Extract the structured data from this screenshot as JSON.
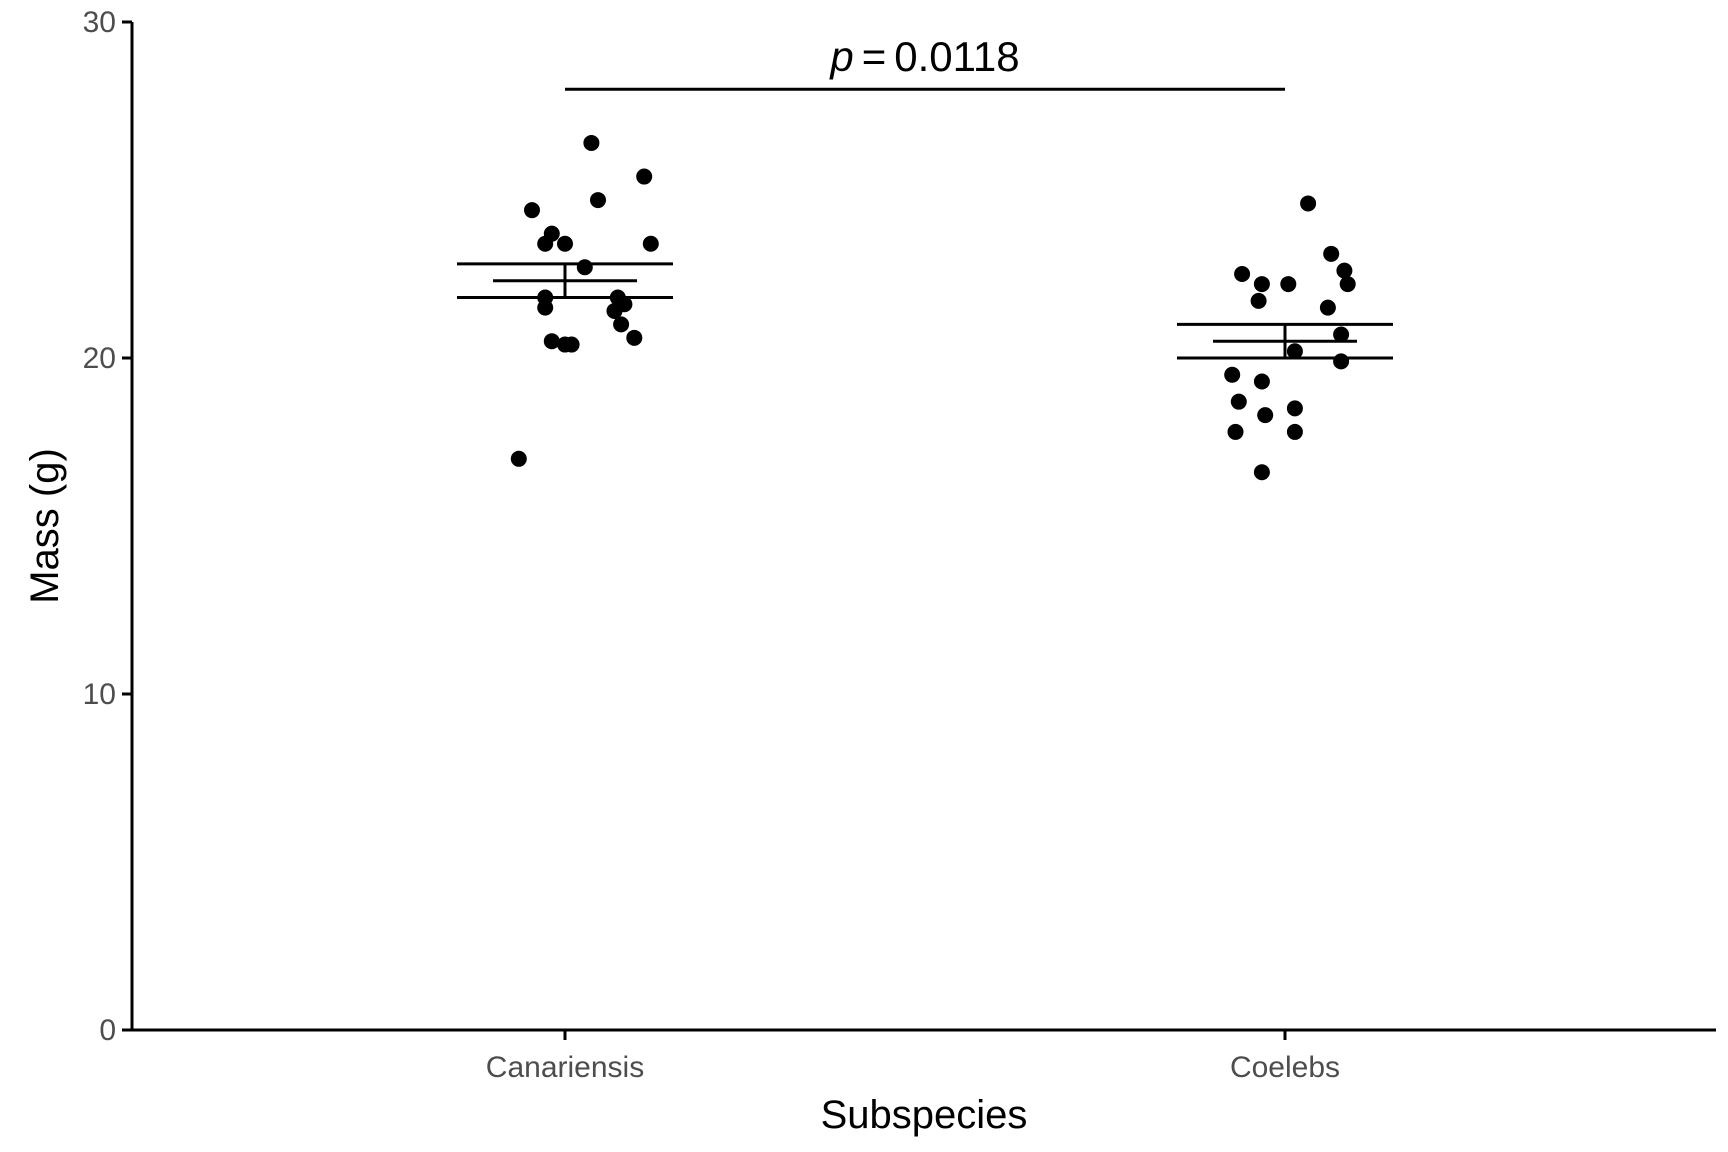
{
  "chart_data": {
    "type": "scatter",
    "title": "",
    "xlabel": "Subspecies",
    "ylabel": "Mass (g)",
    "ylim": [
      0,
      30
    ],
    "yticks": [
      "0",
      "10",
      "20",
      "30"
    ],
    "categories": [
      "Canariensis",
      "Coelebs"
    ],
    "grid": false,
    "colors": {
      "points": "#000000",
      "axis": "#000000",
      "tick_text": "#4d4d4d"
    },
    "groups": [
      {
        "category": "Canariensis",
        "mean": 22.3,
        "se_low": 21.8,
        "se_high": 22.8,
        "points": [
          {
            "jitter": 0.08,
            "y": 26.4
          },
          {
            "jitter": 0.24,
            "y": 25.4
          },
          {
            "jitter": 0.1,
            "y": 24.7
          },
          {
            "jitter": -0.1,
            "y": 24.4
          },
          {
            "jitter": -0.04,
            "y": 23.7
          },
          {
            "jitter": -0.06,
            "y": 23.4
          },
          {
            "jitter": 0.0,
            "y": 23.4
          },
          {
            "jitter": 0.26,
            "y": 23.4
          },
          {
            "jitter": 0.06,
            "y": 22.7
          },
          {
            "jitter": -0.06,
            "y": 21.8
          },
          {
            "jitter": 0.16,
            "y": 21.8
          },
          {
            "jitter": -0.06,
            "y": 21.5
          },
          {
            "jitter": 0.18,
            "y": 21.6
          },
          {
            "jitter": 0.15,
            "y": 21.4
          },
          {
            "jitter": 0.17,
            "y": 21.0
          },
          {
            "jitter": -0.04,
            "y": 20.5
          },
          {
            "jitter": 0.02,
            "y": 20.4
          },
          {
            "jitter": 0.0,
            "y": 20.4
          },
          {
            "jitter": 0.21,
            "y": 20.6
          },
          {
            "jitter": -0.14,
            "y": 17.0
          }
        ]
      },
      {
        "category": "Coelebs",
        "mean": 20.5,
        "se_low": 20.0,
        "se_high": 21.0,
        "points": [
          {
            "jitter": 0.07,
            "y": 24.6
          },
          {
            "jitter": 0.14,
            "y": 23.1
          },
          {
            "jitter": 0.18,
            "y": 22.6
          },
          {
            "jitter": -0.13,
            "y": 22.5
          },
          {
            "jitter": -0.07,
            "y": 22.2
          },
          {
            "jitter": 0.01,
            "y": 22.2
          },
          {
            "jitter": 0.19,
            "y": 22.2
          },
          {
            "jitter": -0.08,
            "y": 21.7
          },
          {
            "jitter": 0.13,
            "y": 21.5
          },
          {
            "jitter": 0.17,
            "y": 20.7
          },
          {
            "jitter": 0.03,
            "y": 20.2
          },
          {
            "jitter": 0.17,
            "y": 19.9
          },
          {
            "jitter": -0.16,
            "y": 19.5
          },
          {
            "jitter": -0.07,
            "y": 19.3
          },
          {
            "jitter": -0.14,
            "y": 18.7
          },
          {
            "jitter": 0.03,
            "y": 18.5
          },
          {
            "jitter": -0.06,
            "y": 18.3
          },
          {
            "jitter": -0.15,
            "y": 17.8
          },
          {
            "jitter": 0.03,
            "y": 17.8
          },
          {
            "jitter": -0.07,
            "y": 16.6
          }
        ]
      }
    ],
    "annotation": {
      "p_symbol": "p",
      "equals": "=",
      "p_value": "0.0118",
      "bracket_y": 28.0,
      "from": "Canariensis",
      "to": "Coelebs"
    }
  }
}
